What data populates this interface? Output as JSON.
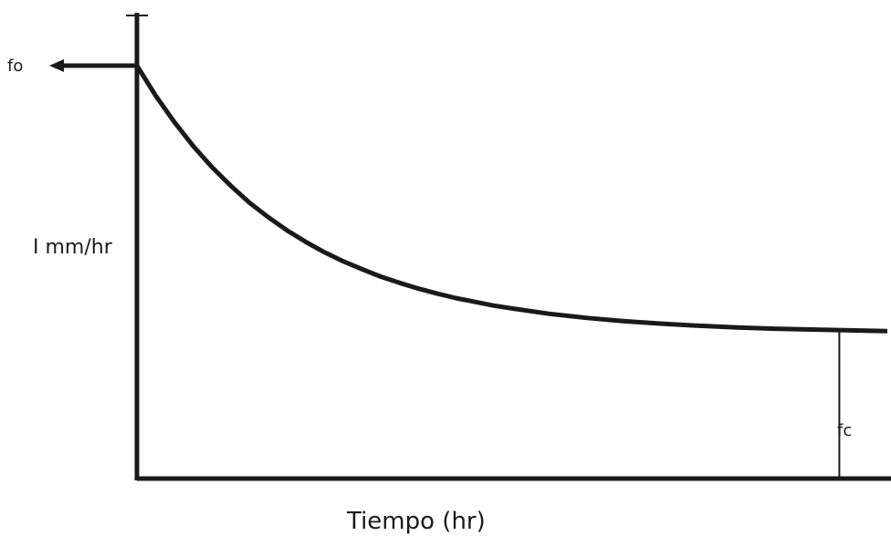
{
  "chart_data": {
    "type": "line",
    "title": "",
    "xlabel": "Tiempo (hr)",
    "ylabel": "I mm/hr",
    "annotations": {
      "initial": "fo",
      "final": "fc"
    },
    "grid": false,
    "legend": "none",
    "xlim": [
      0,
      10
    ],
    "ylim": [
      0,
      1
    ],
    "series": [
      {
        "x": [
          0,
          0.25,
          0.5,
          0.75,
          1,
          1.25,
          1.5,
          1.75,
          2,
          2.25,
          2.5,
          2.75,
          3,
          3.25,
          3.5,
          3.75,
          4,
          4.25,
          4.5,
          4.75,
          5,
          5.5,
          6,
          6.5,
          7,
          7.5,
          8,
          8.5,
          9,
          9.5,
          10
        ],
        "y": [
          1.0,
          0.927,
          0.863,
          0.805,
          0.754,
          0.709,
          0.668,
          0.633,
          0.601,
          0.573,
          0.548,
          0.526,
          0.507,
          0.489,
          0.474,
          0.46,
          0.448,
          0.437,
          0.428,
          0.419,
          0.412,
          0.399,
          0.389,
          0.381,
          0.375,
          0.37,
          0.366,
          0.363,
          0.361,
          0.359,
          0.357
        ]
      }
    ],
    "colors": {
      "line": "#1a1a1a"
    }
  }
}
